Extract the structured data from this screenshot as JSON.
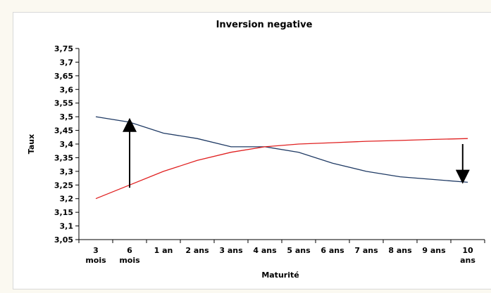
{
  "chart_data": {
    "type": "line",
    "title": "Inversion negative",
    "xlabel": "Maturité",
    "ylabel": "Taux",
    "ylim": [
      3.05,
      3.75
    ],
    "y_ticks": [
      "3,05",
      "3,1",
      "3,15",
      "3,2",
      "3,25",
      "3,3",
      "3,35",
      "3,4",
      "3,45",
      "3,5",
      "3,55",
      "3,6",
      "3,65",
      "3,7",
      "3,75"
    ],
    "categories": [
      [
        "3",
        "mois"
      ],
      [
        "6",
        "mois"
      ],
      [
        "1 an"
      ],
      [
        "2 ans"
      ],
      [
        "3 ans"
      ],
      [
        "4 ans"
      ],
      [
        "5 ans"
      ],
      [
        "6 ans"
      ],
      [
        "7 ans"
      ],
      [
        "8 ans"
      ],
      [
        "9 ans"
      ],
      [
        "10",
        "ans"
      ]
    ],
    "series": [
      {
        "color": "#1f3a64",
        "values": [
          3.5,
          3.48,
          3.44,
          3.42,
          3.39,
          3.39,
          3.37,
          3.33,
          3.3,
          3.28,
          3.27,
          3.26
        ]
      },
      {
        "color": "#e02020",
        "values": [
          3.2,
          3.25,
          3.3,
          3.34,
          3.37,
          3.39,
          3.4,
          3.405,
          3.41,
          3.413,
          3.417,
          3.42
        ]
      }
    ],
    "annotations": [
      {
        "type": "arrow",
        "direction": "up",
        "x_index": 1,
        "from": 3.24,
        "to": 3.47
      },
      {
        "type": "arrow",
        "direction": "down",
        "x_index": 10.85,
        "from": 3.4,
        "to": 3.28
      }
    ],
    "grid": false,
    "legend": "none"
  }
}
